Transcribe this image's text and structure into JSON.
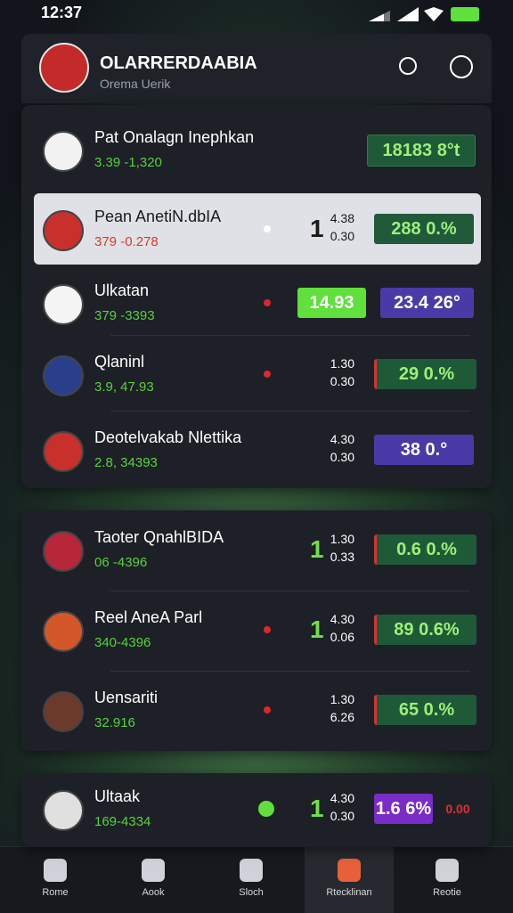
{
  "status": {
    "time": "12:37"
  },
  "header": {
    "title": "OLARRERDAABIA",
    "subtitle": "Orema Uerik"
  },
  "cards": [
    {
      "rows": [
        {
          "name": "Pat Onalagn Inephkan",
          "detail": "3.39 -1,320",
          "badges": [
            "18183 8°t"
          ]
        },
        {
          "name": "Pean AnetiN.dbIA",
          "detail": "379 -0.278",
          "lead": "1",
          "odds": [
            "4.38",
            "0.30"
          ],
          "badges": [
            "288 0.%"
          ]
        },
        {
          "name": "Ulkatan",
          "detail": "379 -3393",
          "badges": [
            "14.93",
            "23.4 26°"
          ]
        },
        {
          "name": "Qlaninl",
          "detail": "3.9, 47.93",
          "odds": [
            "1.30",
            "0.30"
          ],
          "badges": [
            "29 0.%"
          ]
        },
        {
          "name": "Deotelvakab Nlettika",
          "detail": "2.8, 34393",
          "odds": [
            "4.30",
            "0.30"
          ],
          "badges": [
            "38 0.°"
          ]
        }
      ]
    },
    {
      "rows": [
        {
          "name": "Taoter QnahlBIDA",
          "detail": "06 -4396",
          "lead": "1",
          "odds": [
            "1.30",
            "0.33"
          ],
          "badges": [
            "0.6 0.%"
          ]
        },
        {
          "name": "Reel AneA Parl",
          "detail": "340-4396",
          "lead": "1",
          "odds": [
            "4.30",
            "0.06"
          ],
          "badges": [
            "89 0.6%"
          ]
        },
        {
          "name": "Uensariti",
          "detail": "32.916",
          "odds": [
            "1.30",
            "6.26"
          ],
          "badges": [
            "65 0.%"
          ]
        }
      ]
    },
    {
      "rows": [
        {
          "name": "Ultaak",
          "detail": "169-4334",
          "lead": "1",
          "odds": [
            "4.30",
            "0.30"
          ],
          "badges": [
            "1.6 6%",
            "0.00"
          ]
        }
      ]
    }
  ],
  "nav": [
    "Rome",
    "Aook",
    "Sloch",
    "Rtecklinan",
    "Reotie"
  ]
}
